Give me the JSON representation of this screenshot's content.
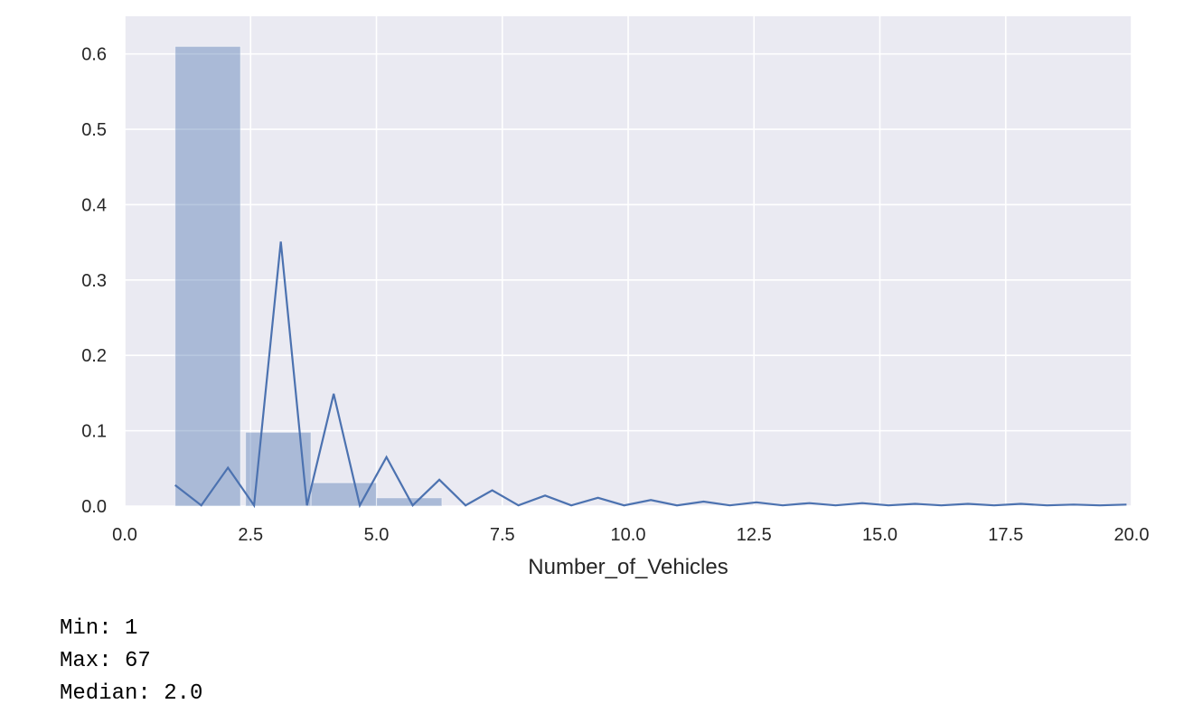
{
  "chart_data": {
    "type": "bar",
    "title": "",
    "xlabel": "Number_of_Vehicles",
    "ylabel": "",
    "xlim": [
      0,
      20
    ],
    "ylim": [
      0,
      0.65
    ],
    "grid": true,
    "xticks": [
      0,
      2.5,
      5,
      7.5,
      10,
      12.5,
      15,
      17.5,
      20
    ],
    "xtick_labels": [
      "0.0",
      "2.5",
      "5.0",
      "7.5",
      "10.0",
      "12.5",
      "15.0",
      "17.5",
      "20.0"
    ],
    "yticks": [
      0,
      0.1,
      0.2,
      0.3,
      0.4,
      0.5,
      0.6
    ],
    "ytick_labels": [
      "0.0",
      "0.1",
      "0.2",
      "0.3",
      "0.4",
      "0.5",
      "0.6"
    ],
    "histogram": {
      "bins": [
        {
          "x0": 1.0,
          "x1": 2.3,
          "value": 0.61
        },
        {
          "x0": 2.4,
          "x1": 3.7,
          "value": 0.098
        },
        {
          "x0": 3.7,
          "x1": 5.0,
          "value": 0.031
        },
        {
          "x0": 5.0,
          "x1": 6.3,
          "value": 0.011
        }
      ]
    },
    "kde_line": {
      "x": [
        1.0,
        1.52,
        2.05,
        2.57,
        3.1,
        3.62,
        4.15,
        4.67,
        5.2,
        5.72,
        6.25,
        6.77,
        7.3,
        7.82,
        8.35,
        8.87,
        9.4,
        9.92,
        10.45,
        10.97,
        11.5,
        12.02,
        12.55,
        13.07,
        13.6,
        14.12,
        14.65,
        15.17,
        15.7,
        16.22,
        16.75,
        17.27,
        17.8,
        18.32,
        18.85,
        19.37,
        19.9
      ],
      "y": [
        0.028,
        0.001,
        0.051,
        0.001,
        0.351,
        0.001,
        0.149,
        0.001,
        0.065,
        0.001,
        0.035,
        0.001,
        0.021,
        0.001,
        0.014,
        0.001,
        0.011,
        0.001,
        0.008,
        0.001,
        0.006,
        0.001,
        0.005,
        0.001,
        0.004,
        0.001,
        0.004,
        0.001,
        0.003,
        0.001,
        0.003,
        0.001,
        0.003,
        0.001,
        0.002,
        0.001,
        0.002
      ]
    },
    "colors": {
      "plot_background": "#eaeaf2",
      "grid": "#ffffff",
      "bar_fill": "#4c72b0",
      "bar_opacity": 0.4,
      "line": "#4c72b0"
    }
  },
  "stats": {
    "min": "Min: 1",
    "max": "Max: 67",
    "median": "Median: 2.0"
  }
}
